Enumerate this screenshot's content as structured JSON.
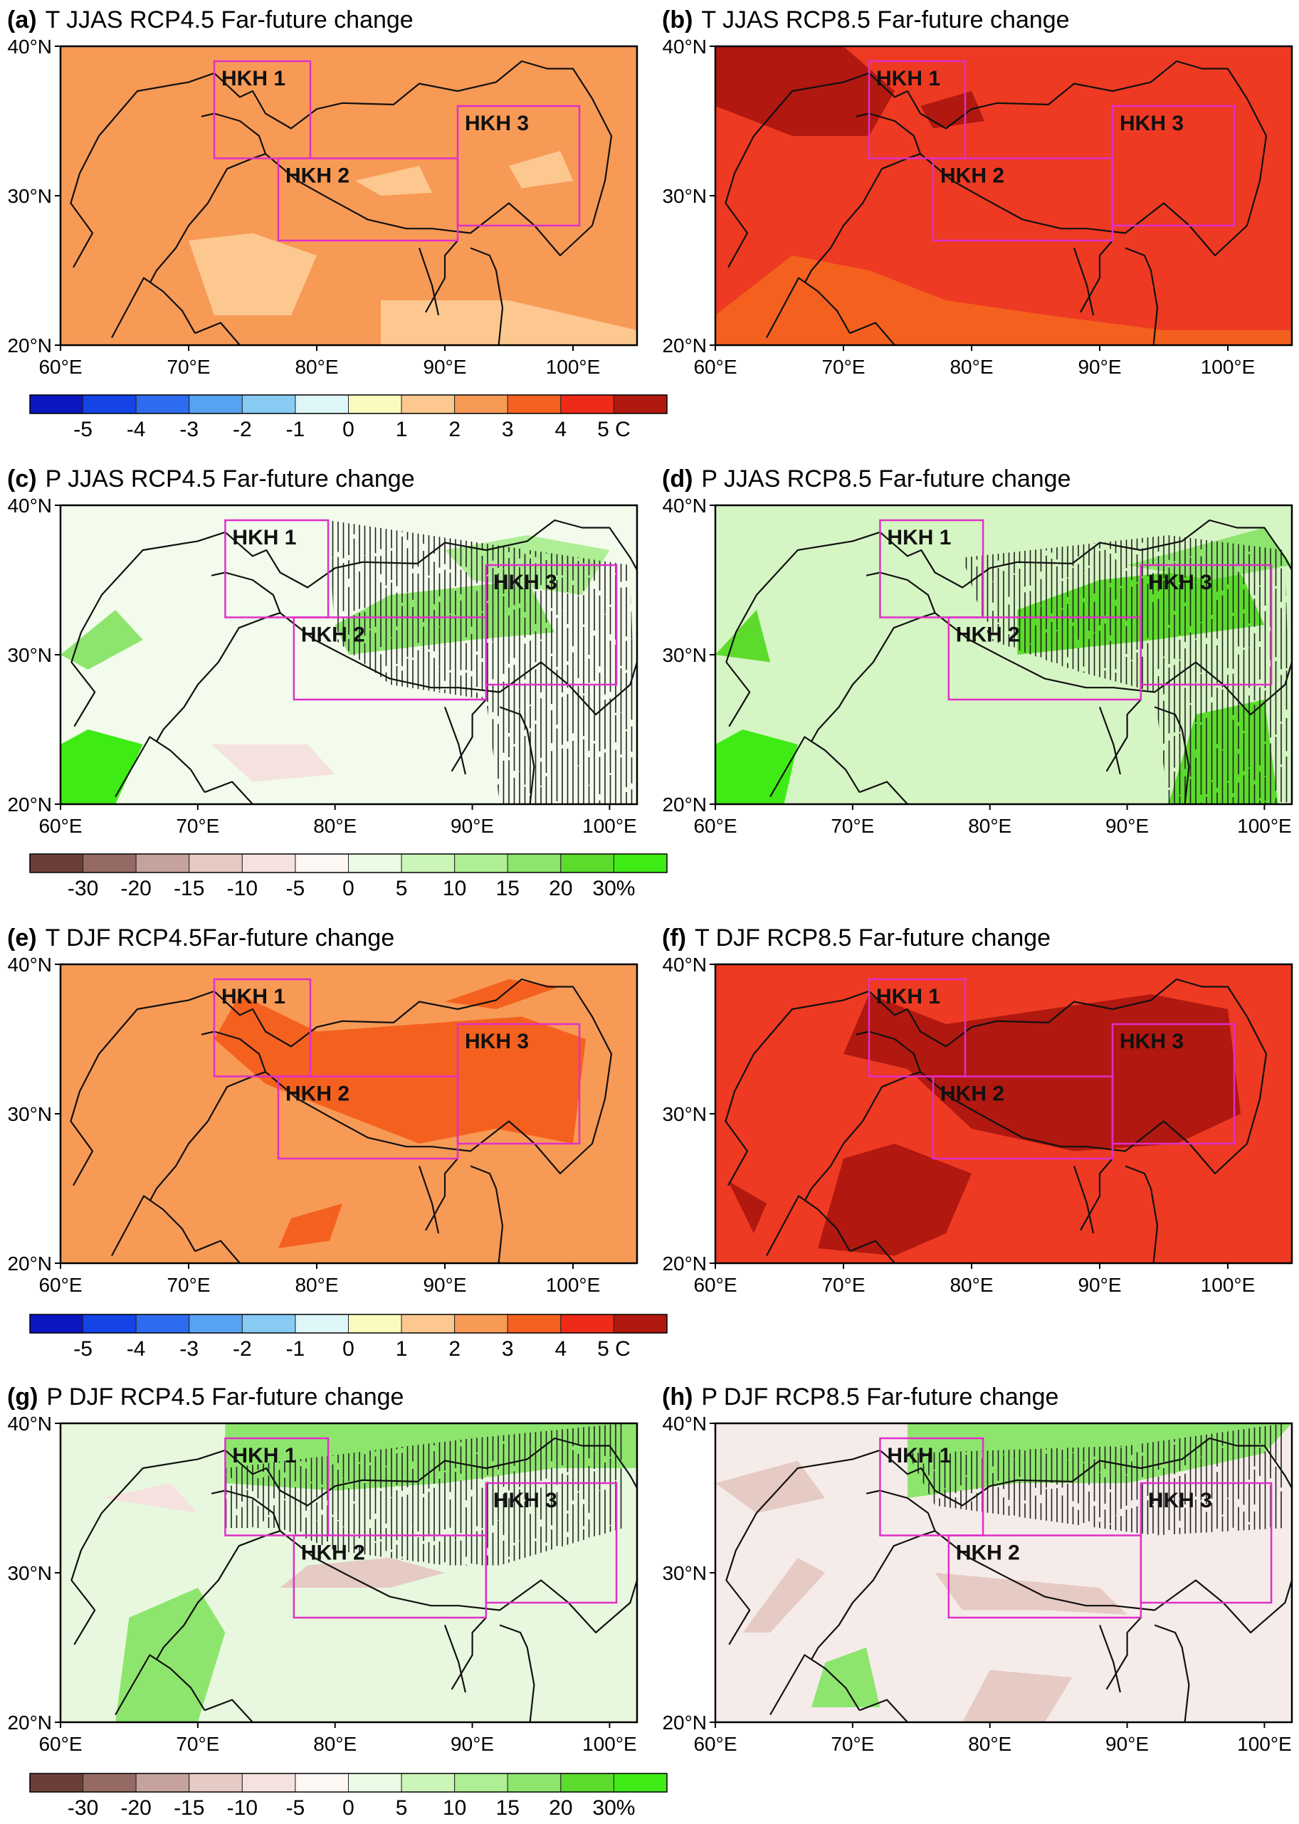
{
  "panels": [
    {
      "id": "a",
      "label": "(a)",
      "title": "T JJAS RCP4.5 Far-future change",
      "variable": "temperature",
      "bg": "#f79a56",
      "lonmax": 105
    },
    {
      "id": "b",
      "label": "(b)",
      "title": "T JJAS RCP8.5 Far-future change",
      "variable": "temperature",
      "bg": "#ee3a22",
      "lonmax": 105
    },
    {
      "id": "c",
      "label": "(c)",
      "title": "P JJAS RCP4.5 Far-future change",
      "variable": "precipitation",
      "bg": "#f2fbec",
      "lonmax": 102
    },
    {
      "id": "d",
      "label": "(d)",
      "title": "P JJAS RCP8.5 Far-future change",
      "variable": "precipitation",
      "bg": "#d6f5c4",
      "lonmax": 102
    },
    {
      "id": "e",
      "label": "(e)",
      "title": "T DJF RCP4.5Far-future change",
      "variable": "temperature",
      "bg": "#f79a56",
      "lonmax": 105
    },
    {
      "id": "f",
      "label": "(f)",
      "title": "T DJF RCP8.5 Far-future change",
      "variable": "temperature",
      "bg": "#ee3a22",
      "lonmax": 105
    },
    {
      "id": "g",
      "label": "(g)",
      "title": "P DJF RCP4.5 Far-future change",
      "variable": "precipitation",
      "bg": "#e8f8df",
      "lonmax": 102
    },
    {
      "id": "h",
      "label": "(h)",
      "title": "P DJF RCP8.5 Far-future change",
      "variable": "precipitation",
      "bg": "#f5ecea",
      "lonmax": 102
    }
  ],
  "axes": {
    "lat_range": [
      20,
      40
    ],
    "lat_ticks": [
      {
        "v": 20,
        "label": "20°N"
      },
      {
        "v": 30,
        "label": "30°N"
      },
      {
        "v": 40,
        "label": "40°N"
      }
    ],
    "lon_ticks": [
      {
        "v": 60,
        "label": "60°E"
      },
      {
        "v": 70,
        "label": "70°E"
      },
      {
        "v": 80,
        "label": "80°E"
      },
      {
        "v": 90,
        "label": "90°E"
      },
      {
        "v": 100,
        "label": "100°E"
      }
    ]
  },
  "regions": [
    {
      "label": "HKH 1",
      "lon": [
        72,
        79.5
      ],
      "lat": [
        32.5,
        39
      ]
    },
    {
      "label": "HKH 2",
      "lon": [
        77,
        91
      ],
      "lat": [
        27,
        32.5
      ]
    },
    {
      "label": "HKH 3",
      "lon": [
        91,
        100.5
      ],
      "lat": [
        28,
        36
      ]
    }
  ],
  "colorbars": {
    "temperature": {
      "colors": [
        "#0a16c0",
        "#1443e6",
        "#2d6cf0",
        "#58a2f3",
        "#87cbf5",
        "#ddf7f9",
        "#fbfbc0",
        "#fcc890",
        "#f79a56",
        "#f4611f",
        "#ee2b18",
        "#b01810"
      ],
      "labels": [
        "-5",
        "-4",
        "-3",
        "-2",
        "-1",
        "0",
        "1",
        "2",
        "3",
        "4",
        "5 C"
      ]
    },
    "precipitation": {
      "colors": [
        "#6b3f38",
        "#956b63",
        "#c5a39c",
        "#e6cac4",
        "#f5e2de",
        "#fdf8f4",
        "#eafae4",
        "#ccf5b8",
        "#aeee94",
        "#8ee56e",
        "#5cdb2c",
        "#3eeb15"
      ],
      "labels": [
        "-30",
        "-20",
        "-15",
        "-10",
        "-5",
        "0",
        "5",
        "10",
        "15",
        "20",
        "30%"
      ]
    }
  },
  "colors": {
    "region_box": "#e02fc8",
    "boundary": "#111111",
    "frame": "#000000"
  }
}
